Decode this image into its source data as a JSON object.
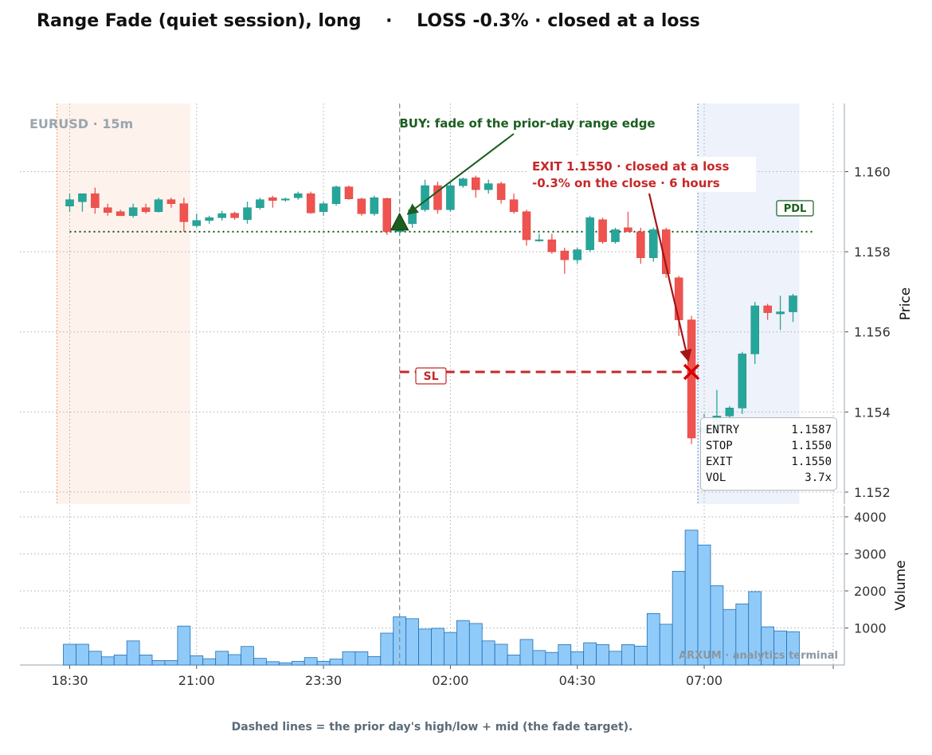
{
  "title": "Range Fade (quiet session), long    ·    LOSS -0.3% · closed at a loss",
  "footnote": "Dashed lines = the prior day's high/low + mid (the fade target).",
  "watermark": "ARXUM · analytics terminal",
  "symbol_label": "EURUSD · 15m",
  "annotations": {
    "buy": "BUY: fade of the prior-day range edge",
    "exit_line1": "EXIT 1.1550 · closed at a loss",
    "exit_line2": "-0.3% on the close  ·  6 hours",
    "pdl": "PDL",
    "sl": "SL"
  },
  "info_box": [
    {
      "label": "ENTRY",
      "value": "1.1587"
    },
    {
      "label": "STOP",
      "value": "1.1550"
    },
    {
      "label": "EXIT",
      "value": "1.1550"
    },
    {
      "label": "VOL",
      "value": "3.7x"
    }
  ],
  "colors": {
    "up": "#26a69a",
    "down": "#ef5350",
    "volume": "#90caf9",
    "volume_edge": "#1e6fb5",
    "pdl_line": "#1b5e20",
    "stop_line": "#c62828",
    "buy_text": "#1b5e20",
    "exit_text": "#c62828",
    "session_pre": "#fde8dc",
    "session_post": "#e3eaf7"
  },
  "chart_data": {
    "type": "candlestick",
    "price_ylabel": "Price",
    "volume_ylabel": "Volume",
    "price_ticks": [
      "1.152",
      "1.154",
      "1.156",
      "1.158",
      "1.160"
    ],
    "price_tick_values": [
      1.152,
      1.154,
      1.156,
      1.158,
      1.16
    ],
    "volume_ticks": [
      "1000",
      "2000",
      "3000",
      "4000"
    ],
    "volume_tick_values": [
      1000,
      2000,
      3000,
      4000
    ],
    "x_ticks": [
      "18:30",
      "21:00",
      "23:30",
      "02:00",
      "04:30",
      "07:00"
    ],
    "x_tick_index": [
      0,
      10,
      20,
      30,
      40,
      50
    ],
    "price_range": [
      1.1517,
      1.1617
    ],
    "volume_range": [
      0,
      4300
    ],
    "pdl_level": 1.1585,
    "entry": 1.1587,
    "stop": 1.155,
    "exit": 1.155,
    "entry_index": 26,
    "exit_index": 49,
    "pre_session_range": [
      -0.5,
      9.5
    ],
    "post_session_range": [
      49.5,
      57.5
    ],
    "candles": [
      {
        "o": 1.15914,
        "h": 1.15945,
        "l": 1.159,
        "c": 1.1593,
        "v": 560
      },
      {
        "o": 1.15925,
        "h": 1.15945,
        "l": 1.159,
        "c": 1.15945,
        "v": 560
      },
      {
        "o": 1.15945,
        "h": 1.1596,
        "l": 1.15895,
        "c": 1.1591,
        "v": 370
      },
      {
        "o": 1.1591,
        "h": 1.1592,
        "l": 1.1589,
        "c": 1.15898,
        "v": 220
      },
      {
        "o": 1.159,
        "h": 1.15905,
        "l": 1.15892,
        "c": 1.1589,
        "v": 270
      },
      {
        "o": 1.1589,
        "h": 1.1592,
        "l": 1.15885,
        "c": 1.1591,
        "v": 650
      },
      {
        "o": 1.1591,
        "h": 1.1592,
        "l": 1.15895,
        "c": 1.159,
        "v": 270
      },
      {
        "o": 1.159,
        "h": 1.15935,
        "l": 1.15898,
        "c": 1.1593,
        "v": 120
      },
      {
        "o": 1.1593,
        "h": 1.15935,
        "l": 1.1591,
        "c": 1.1592,
        "v": 120
      },
      {
        "o": 1.1592,
        "h": 1.15935,
        "l": 1.1585,
        "c": 1.15875,
        "v": 1050
      },
      {
        "o": 1.15865,
        "h": 1.15895,
        "l": 1.1586,
        "c": 1.15878,
        "v": 250
      },
      {
        "o": 1.15878,
        "h": 1.1589,
        "l": 1.1587,
        "c": 1.15885,
        "v": 170
      },
      {
        "o": 1.15885,
        "h": 1.15902,
        "l": 1.15878,
        "c": 1.15895,
        "v": 370
      },
      {
        "o": 1.15896,
        "h": 1.159,
        "l": 1.1588,
        "c": 1.15885,
        "v": 280
      },
      {
        "o": 1.1588,
        "h": 1.15925,
        "l": 1.1587,
        "c": 1.1591,
        "v": 500
      },
      {
        "o": 1.1591,
        "h": 1.15935,
        "l": 1.15905,
        "c": 1.1593,
        "v": 180
      },
      {
        "o": 1.15935,
        "h": 1.1594,
        "l": 1.1591,
        "c": 1.15928,
        "v": 90
      },
      {
        "o": 1.1593,
        "h": 1.15935,
        "l": 1.15925,
        "c": 1.15932,
        "v": 60
      },
      {
        "o": 1.15935,
        "h": 1.1595,
        "l": 1.1593,
        "c": 1.15945,
        "v": 100
      },
      {
        "o": 1.15945,
        "h": 1.1595,
        "l": 1.15895,
        "c": 1.15897,
        "v": 200
      },
      {
        "o": 1.159,
        "h": 1.15925,
        "l": 1.1589,
        "c": 1.1592,
        "v": 100
      },
      {
        "o": 1.1592,
        "h": 1.15965,
        "l": 1.15915,
        "c": 1.15962,
        "v": 160
      },
      {
        "o": 1.15962,
        "h": 1.15965,
        "l": 1.1593,
        "c": 1.15932,
        "v": 360
      },
      {
        "o": 1.15932,
        "h": 1.15935,
        "l": 1.1589,
        "c": 1.15895,
        "v": 360
      },
      {
        "o": 1.15895,
        "h": 1.1594,
        "l": 1.1589,
        "c": 1.15935,
        "v": 230
      },
      {
        "o": 1.15933,
        "h": 1.15935,
        "l": 1.15842,
        "c": 1.1585,
        "v": 860
      },
      {
        "o": 1.1585,
        "h": 1.1588,
        "l": 1.1584,
        "c": 1.15865,
        "v": 1300
      },
      {
        "o": 1.1587,
        "h": 1.1592,
        "l": 1.1586,
        "c": 1.15905,
        "v": 1250
      },
      {
        "o": 1.15905,
        "h": 1.1598,
        "l": 1.159,
        "c": 1.15965,
        "v": 970
      },
      {
        "o": 1.15965,
        "h": 1.15975,
        "l": 1.15895,
        "c": 1.15905,
        "v": 990
      },
      {
        "o": 1.15905,
        "h": 1.15975,
        "l": 1.159,
        "c": 1.15965,
        "v": 880
      },
      {
        "o": 1.15965,
        "h": 1.15985,
        "l": 1.1596,
        "c": 1.15982,
        "v": 1200
      },
      {
        "o": 1.15985,
        "h": 1.1599,
        "l": 1.15935,
        "c": 1.15955,
        "v": 1120
      },
      {
        "o": 1.15955,
        "h": 1.1598,
        "l": 1.15945,
        "c": 1.1597,
        "v": 650
      },
      {
        "o": 1.1597,
        "h": 1.15975,
        "l": 1.1592,
        "c": 1.1593,
        "v": 560
      },
      {
        "o": 1.1593,
        "h": 1.15945,
        "l": 1.15895,
        "c": 1.159,
        "v": 270
      },
      {
        "o": 1.159,
        "h": 1.15905,
        "l": 1.15815,
        "c": 1.1583,
        "v": 690
      },
      {
        "o": 1.1583,
        "h": 1.15845,
        "l": 1.15825,
        "c": 1.1583,
        "v": 390
      },
      {
        "o": 1.1583,
        "h": 1.15845,
        "l": 1.15795,
        "c": 1.158,
        "v": 340
      },
      {
        "o": 1.15802,
        "h": 1.1581,
        "l": 1.15745,
        "c": 1.1578,
        "v": 550
      },
      {
        "o": 1.1578,
        "h": 1.1581,
        "l": 1.1577,
        "c": 1.15805,
        "v": 360
      },
      {
        "o": 1.15805,
        "h": 1.1589,
        "l": 1.158,
        "c": 1.15885,
        "v": 600
      },
      {
        "o": 1.1588,
        "h": 1.15885,
        "l": 1.1582,
        "c": 1.15825,
        "v": 550
      },
      {
        "o": 1.15825,
        "h": 1.1586,
        "l": 1.1582,
        "c": 1.15855,
        "v": 370
      },
      {
        "o": 1.1586,
        "h": 1.159,
        "l": 1.1585,
        "c": 1.1585,
        "v": 550
      },
      {
        "o": 1.1585,
        "h": 1.1586,
        "l": 1.1577,
        "c": 1.15785,
        "v": 510
      },
      {
        "o": 1.15785,
        "h": 1.1586,
        "l": 1.15775,
        "c": 1.15855,
        "v": 1390
      },
      {
        "o": 1.15855,
        "h": 1.1586,
        "l": 1.15735,
        "c": 1.15745,
        "v": 1100
      },
      {
        "o": 1.15735,
        "h": 1.1574,
        "l": 1.1559,
        "c": 1.1563,
        "v": 2530
      },
      {
        "o": 1.1563,
        "h": 1.1564,
        "l": 1.1532,
        "c": 1.15335,
        "v": 3640
      },
      {
        "o": 1.1535,
        "h": 1.15395,
        "l": 1.1534,
        "c": 1.1536,
        "v": 3240
      },
      {
        "o": 1.1536,
        "h": 1.15455,
        "l": 1.15345,
        "c": 1.1539,
        "v": 2140
      },
      {
        "o": 1.1539,
        "h": 1.15415,
        "l": 1.1537,
        "c": 1.1541,
        "v": 1500
      },
      {
        "o": 1.1541,
        "h": 1.1555,
        "l": 1.15395,
        "c": 1.15545,
        "v": 1650
      },
      {
        "o": 1.15545,
        "h": 1.15675,
        "l": 1.1552,
        "c": 1.15665,
        "v": 1980
      },
      {
        "o": 1.15665,
        "h": 1.1567,
        "l": 1.1563,
        "c": 1.15648,
        "v": 1030
      },
      {
        "o": 1.15645,
        "h": 1.1569,
        "l": 1.15605,
        "c": 1.1565,
        "v": 920
      },
      {
        "o": 1.1565,
        "h": 1.15695,
        "l": 1.15625,
        "c": 1.1569,
        "v": 900
      }
    ]
  }
}
